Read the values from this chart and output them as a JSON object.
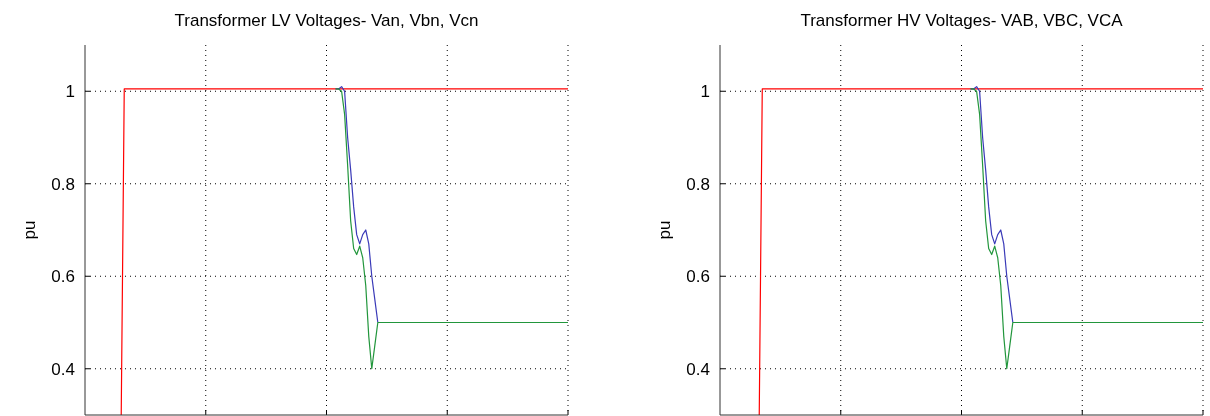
{
  "chart_data": [
    {
      "type": "line",
      "title": "Transformer LV Voltages- Van, Vbn, Vcn",
      "ylabel": "pu",
      "categories": [
        null,
        null,
        null,
        null,
        null,
        null,
        null,
        null,
        null,
        null,
        null,
        null,
        null,
        null,
        null,
        null,
        null,
        null,
        null,
        null,
        null,
        null,
        null,
        null,
        null,
        null,
        null,
        null,
        null,
        null,
        null,
        null,
        null,
        null,
        null,
        null,
        null,
        null,
        null,
        null,
        null,
        null,
        null,
        null,
        null,
        null,
        null,
        null,
        null,
        null,
        null,
        null,
        null,
        null,
        null,
        null,
        null,
        null,
        null,
        null,
        null,
        null,
        null,
        null,
        null,
        null,
        null,
        null,
        null,
        null,
        null,
        null,
        null,
        null,
        null,
        null,
        null,
        null,
        null,
        null,
        null,
        null,
        null,
        null,
        null,
        null,
        null,
        null,
        null,
        null,
        null,
        null,
        null,
        null,
        null,
        null,
        null,
        null,
        null,
        null,
        null,
        null,
        null,
        null,
        null,
        null,
        null,
        null,
        null,
        null,
        null,
        null,
        null,
        null,
        null,
        null,
        null,
        null,
        null,
        null,
        null,
        null,
        null,
        null,
        null,
        null,
        null,
        null,
        null,
        null,
        null,
        null,
        null,
        null,
        null,
        null,
        null,
        null,
        null,
        null,
        null,
        null,
        null,
        null,
        null,
        null,
        null,
        null,
        null,
        null,
        null,
        null,
        null,
        null,
        null,
        null,
        null,
        null,
        null,
        null,
        null
      ],
      "ylim": [
        0.3,
        1.1
      ],
      "yticks": [
        {
          "value": 0.4,
          "label": "0.4"
        },
        {
          "value": 0.6,
          "label": "0.6"
        },
        {
          "value": 0.8,
          "label": "0.8"
        },
        {
          "value": 1,
          "label": "1"
        }
      ],
      "grid": true,
      "series": [
        {
          "color": "#ff0000",
          "values": [
            null,
            null,
            null,
            null,
            null,
            null,
            null,
            null,
            null,
            null,
            null,
            null,
            0.3,
            1.005,
            1.005,
            1.005,
            1.005,
            1.005,
            1.005,
            1.005,
            1.005,
            1.005,
            1.005,
            1.005,
            1.005,
            1.005,
            1.005,
            1.005,
            1.005,
            1.005,
            1.005,
            1.005,
            1.005,
            1.005,
            1.005,
            1.005,
            1.005,
            1.005,
            1.005,
            1.005,
            1.005,
            1.005,
            1.005,
            1.005,
            1.005,
            1.005,
            1.005,
            1.005,
            1.005,
            1.005,
            1.005,
            1.005,
            1.005,
            1.005,
            1.005,
            1.005,
            1.005,
            1.005,
            1.005,
            1.005,
            1.005,
            1.005,
            1.005,
            1.005,
            1.005,
            1.005,
            1.005,
            1.005,
            1.005,
            1.005,
            1.005,
            1.005,
            1.005,
            1.005,
            1.005,
            1.005,
            1.005,
            1.005,
            1.005,
            1.005,
            1.005,
            1.005,
            1.005,
            1.005,
            1.005,
            1.005,
            1.005,
            1.005,
            1.005,
            1.005,
            1.005,
            1.005,
            1.005,
            1.005,
            1.005,
            1.005,
            1.005,
            1.005,
            1.005,
            1.005,
            1.005,
            1.005,
            1.005,
            1.005,
            1.005,
            1.005,
            1.005,
            1.005,
            1.005,
            1.005,
            1.005,
            1.005,
            1.005,
            1.005,
            1.005,
            1.005,
            1.005,
            1.005,
            1.005,
            1.005,
            1.005,
            1.005,
            1.005,
            1.005,
            1.005,
            1.005,
            1.005,
            1.005,
            1.005,
            1.005,
            1.005,
            1.005,
            1.005,
            1.005,
            1.005,
            1.005,
            1.005,
            1.005,
            1.005,
            1.005,
            1.005,
            1.005,
            1.005,
            1.005,
            1.005,
            1.005,
            1.005,
            1.005,
            1.005,
            1.005,
            1.005,
            1.005,
            1.005,
            1.005,
            1.005,
            1.005,
            1.005,
            1.005,
            1.005,
            1.005,
            1.005
          ]
        },
        {
          "color": "#3a3ab8",
          "values": [
            null,
            null,
            null,
            null,
            null,
            null,
            null,
            null,
            null,
            null,
            null,
            null,
            null,
            null,
            null,
            null,
            null,
            null,
            null,
            null,
            null,
            null,
            null,
            null,
            null,
            null,
            null,
            null,
            null,
            null,
            null,
            null,
            null,
            null,
            null,
            null,
            null,
            null,
            null,
            null,
            null,
            null,
            null,
            null,
            null,
            null,
            null,
            null,
            null,
            null,
            null,
            null,
            null,
            null,
            null,
            null,
            null,
            null,
            null,
            null,
            null,
            null,
            null,
            null,
            null,
            null,
            null,
            null,
            null,
            null,
            null,
            null,
            null,
            null,
            null,
            null,
            null,
            null,
            null,
            null,
            null,
            null,
            null,
            1.005,
            1.005,
            1.01,
            1.0,
            0.9,
            0.83,
            0.75,
            0.69,
            0.67,
            0.69,
            0.7,
            0.67,
            0.6,
            0.55,
            0.5,
            null,
            null,
            null,
            null,
            null,
            null,
            null,
            null,
            null,
            null,
            null,
            null,
            null,
            null,
            null,
            null,
            null,
            null,
            null,
            null,
            null,
            null,
            null,
            null,
            null,
            null,
            null,
            null,
            null,
            null,
            null,
            null,
            null,
            null,
            null,
            null,
            null,
            null,
            null,
            null,
            null,
            null,
            null,
            null,
            null,
            null,
            null,
            null,
            null,
            null,
            null,
            null,
            null,
            null,
            null,
            null,
            null,
            null,
            null,
            null,
            null,
            null,
            null
          ]
        },
        {
          "color": "#22963c",
          "values": [
            null,
            null,
            null,
            null,
            null,
            null,
            null,
            null,
            null,
            null,
            null,
            null,
            null,
            null,
            null,
            null,
            null,
            null,
            null,
            null,
            null,
            null,
            null,
            null,
            null,
            null,
            null,
            null,
            null,
            null,
            null,
            null,
            null,
            null,
            null,
            null,
            null,
            null,
            null,
            null,
            null,
            null,
            null,
            null,
            null,
            null,
            null,
            null,
            null,
            null,
            null,
            null,
            null,
            null,
            null,
            null,
            null,
            null,
            null,
            null,
            null,
            null,
            null,
            null,
            null,
            null,
            null,
            null,
            null,
            null,
            null,
            null,
            null,
            null,
            null,
            null,
            null,
            null,
            null,
            null,
            null,
            null,
            null,
            1.005,
            1.005,
            1.0,
            0.95,
            0.84,
            0.72,
            0.66,
            0.647,
            0.665,
            0.64,
            0.58,
            0.47,
            0.4,
            0.45,
            0.5,
            0.5,
            0.5,
            0.5,
            0.5,
            0.5,
            0.5,
            0.5,
            0.5,
            0.5,
            0.5,
            0.5,
            0.5,
            0.5,
            0.5,
            0.5,
            0.5,
            0.5,
            0.5,
            0.5,
            0.5,
            0.5,
            0.5,
            0.5,
            0.5,
            0.5,
            0.5,
            0.5,
            0.5,
            0.5,
            0.5,
            0.5,
            0.5,
            0.5,
            0.5,
            0.5,
            0.5,
            0.5,
            0.5,
            0.5,
            0.5,
            0.5,
            0.5,
            0.5,
            0.5,
            0.5,
            0.5,
            0.5,
            0.5,
            0.5,
            0.5,
            0.5,
            0.5,
            0.5,
            0.5,
            0.5,
            0.5,
            0.5,
            0.5,
            0.5,
            0.5,
            0.5,
            0.5,
            0.5
          ]
        }
      ]
    },
    {
      "type": "line",
      "title": "Transformer HV Voltages- VAB, VBC, VCA",
      "ylabel": "pu",
      "categories": [
        null,
        null,
        null,
        null,
        null,
        null,
        null,
        null,
        null,
        null,
        null,
        null,
        null,
        null,
        null,
        null,
        null,
        null,
        null,
        null,
        null,
        null,
        null,
        null,
        null,
        null,
        null,
        null,
        null,
        null,
        null,
        null,
        null,
        null,
        null,
        null,
        null,
        null,
        null,
        null,
        null,
        null,
        null,
        null,
        null,
        null,
        null,
        null,
        null,
        null,
        null,
        null,
        null,
        null,
        null,
        null,
        null,
        null,
        null,
        null,
        null,
        null,
        null,
        null,
        null,
        null,
        null,
        null,
        null,
        null,
        null,
        null,
        null,
        null,
        null,
        null,
        null,
        null,
        null,
        null,
        null,
        null,
        null,
        null,
        null,
        null,
        null,
        null,
        null,
        null,
        null,
        null,
        null,
        null,
        null,
        null,
        null,
        null,
        null,
        null,
        null,
        null,
        null,
        null,
        null,
        null,
        null,
        null,
        null,
        null,
        null,
        null,
        null,
        null,
        null,
        null,
        null,
        null,
        null,
        null,
        null,
        null,
        null,
        null,
        null,
        null,
        null,
        null,
        null,
        null,
        null,
        null,
        null,
        null,
        null,
        null,
        null,
        null,
        null,
        null,
        null,
        null,
        null,
        null,
        null,
        null,
        null,
        null,
        null,
        null,
        null,
        null,
        null,
        null,
        null,
        null,
        null,
        null,
        null,
        null,
        null
      ],
      "ylim": [
        0.3,
        1.1
      ],
      "yticks": [
        {
          "value": 0.4,
          "label": "0.4"
        },
        {
          "value": 0.6,
          "label": "0.6"
        },
        {
          "value": 0.8,
          "label": "0.8"
        },
        {
          "value": 1,
          "label": "1"
        }
      ],
      "grid": true,
      "series": [
        {
          "color": "#ff0000",
          "values": [
            null,
            null,
            null,
            null,
            null,
            null,
            null,
            null,
            null,
            null,
            null,
            null,
            null,
            0.3,
            1.005,
            1.005,
            1.005,
            1.005,
            1.005,
            1.005,
            1.005,
            1.005,
            1.005,
            1.005,
            1.005,
            1.005,
            1.005,
            1.005,
            1.005,
            1.005,
            1.005,
            1.005,
            1.005,
            1.005,
            1.005,
            1.005,
            1.005,
            1.005,
            1.005,
            1.005,
            1.005,
            1.005,
            1.005,
            1.005,
            1.005,
            1.005,
            1.005,
            1.005,
            1.005,
            1.005,
            1.005,
            1.005,
            1.005,
            1.005,
            1.005,
            1.005,
            1.005,
            1.005,
            1.005,
            1.005,
            1.005,
            1.005,
            1.005,
            1.005,
            1.005,
            1.005,
            1.005,
            1.005,
            1.005,
            1.005,
            1.005,
            1.005,
            1.005,
            1.005,
            1.005,
            1.005,
            1.005,
            1.005,
            1.005,
            1.005,
            1.005,
            1.005,
            1.005,
            1.005,
            1.005,
            1.005,
            1.005,
            1.005,
            1.005,
            1.005,
            1.005,
            1.005,
            1.005,
            1.005,
            1.005,
            1.005,
            1.005,
            1.005,
            1.005,
            1.005,
            1.005,
            1.005,
            1.005,
            1.005,
            1.005,
            1.005,
            1.005,
            1.005,
            1.005,
            1.005,
            1.005,
            1.005,
            1.005,
            1.005,
            1.005,
            1.005,
            1.005,
            1.005,
            1.005,
            1.005,
            1.005,
            1.005,
            1.005,
            1.005,
            1.005,
            1.005,
            1.005,
            1.005,
            1.005,
            1.005,
            1.005,
            1.005,
            1.005,
            1.005,
            1.005,
            1.005,
            1.005,
            1.005,
            1.005,
            1.005,
            1.005,
            1.005,
            1.005,
            1.005,
            1.005,
            1.005,
            1.005,
            1.005,
            1.005,
            1.005,
            1.005,
            1.005,
            1.005,
            1.005,
            1.005,
            1.005,
            1.005,
            1.005,
            1.005,
            1.005,
            1.005
          ]
        },
        {
          "color": "#3a3ab8",
          "values": [
            null,
            null,
            null,
            null,
            null,
            null,
            null,
            null,
            null,
            null,
            null,
            null,
            null,
            null,
            null,
            null,
            null,
            null,
            null,
            null,
            null,
            null,
            null,
            null,
            null,
            null,
            null,
            null,
            null,
            null,
            null,
            null,
            null,
            null,
            null,
            null,
            null,
            null,
            null,
            null,
            null,
            null,
            null,
            null,
            null,
            null,
            null,
            null,
            null,
            null,
            null,
            null,
            null,
            null,
            null,
            null,
            null,
            null,
            null,
            null,
            null,
            null,
            null,
            null,
            null,
            null,
            null,
            null,
            null,
            null,
            null,
            null,
            null,
            null,
            null,
            null,
            null,
            null,
            null,
            null,
            null,
            null,
            null,
            1.005,
            1.005,
            1.01,
            1.0,
            0.9,
            0.83,
            0.75,
            0.69,
            0.67,
            0.69,
            0.7,
            0.67,
            0.6,
            0.55,
            0.5,
            null,
            null,
            null,
            null,
            null,
            null,
            null,
            null,
            null,
            null,
            null,
            null,
            null,
            null,
            null,
            null,
            null,
            null,
            null,
            null,
            null,
            null,
            null,
            null,
            null,
            null,
            null,
            null,
            null,
            null,
            null,
            null,
            null,
            null,
            null,
            null,
            null,
            null,
            null,
            null,
            null,
            null,
            null,
            null,
            null,
            null,
            null,
            null,
            null,
            null,
            null,
            null,
            null,
            null,
            null,
            null,
            null,
            null,
            null,
            null,
            null,
            null,
            null
          ]
        },
        {
          "color": "#22963c",
          "values": [
            null,
            null,
            null,
            null,
            null,
            null,
            null,
            null,
            null,
            null,
            null,
            null,
            null,
            null,
            null,
            null,
            null,
            null,
            null,
            null,
            null,
            null,
            null,
            null,
            null,
            null,
            null,
            null,
            null,
            null,
            null,
            null,
            null,
            null,
            null,
            null,
            null,
            null,
            null,
            null,
            null,
            null,
            null,
            null,
            null,
            null,
            null,
            null,
            null,
            null,
            null,
            null,
            null,
            null,
            null,
            null,
            null,
            null,
            null,
            null,
            null,
            null,
            null,
            null,
            null,
            null,
            null,
            null,
            null,
            null,
            null,
            null,
            null,
            null,
            null,
            null,
            null,
            null,
            null,
            null,
            null,
            null,
            null,
            1.005,
            1.005,
            1.0,
            0.95,
            0.84,
            0.72,
            0.66,
            0.647,
            0.665,
            0.64,
            0.58,
            0.47,
            0.4,
            0.45,
            0.5,
            0.5,
            0.5,
            0.5,
            0.5,
            0.5,
            0.5,
            0.5,
            0.5,
            0.5,
            0.5,
            0.5,
            0.5,
            0.5,
            0.5,
            0.5,
            0.5,
            0.5,
            0.5,
            0.5,
            0.5,
            0.5,
            0.5,
            0.5,
            0.5,
            0.5,
            0.5,
            0.5,
            0.5,
            0.5,
            0.5,
            0.5,
            0.5,
            0.5,
            0.5,
            0.5,
            0.5,
            0.5,
            0.5,
            0.5,
            0.5,
            0.5,
            0.5,
            0.5,
            0.5,
            0.5,
            0.5,
            0.5,
            0.5,
            0.5,
            0.5,
            0.5,
            0.5,
            0.5,
            0.5,
            0.5,
            0.5,
            0.5,
            0.5,
            0.5,
            0.5,
            0.5,
            0.5,
            0.5
          ]
        }
      ]
    }
  ]
}
